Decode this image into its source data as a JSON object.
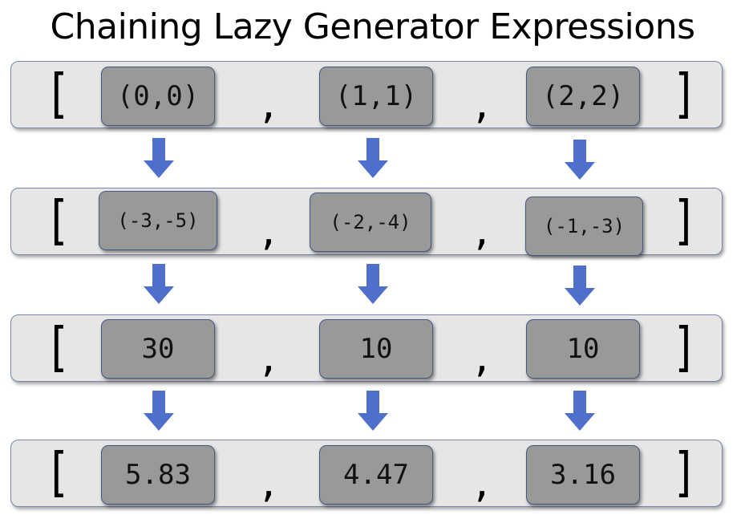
{
  "title": "Chaining Lazy Generator Expressions",
  "brackets": {
    "open": "[",
    "close": "]"
  },
  "separator": ",",
  "rows": [
    {
      "cells": [
        "(0,0)",
        "(1,1)",
        "(2,2)"
      ]
    },
    {
      "cells": [
        "(-3,-5)",
        "(-2,-4)",
        "(-1,-3)"
      ]
    },
    {
      "cells": [
        "30",
        "10",
        "10"
      ]
    },
    {
      "cells": [
        "5.83",
        "4.47",
        "3.16"
      ]
    }
  ],
  "colors": {
    "arrow": "#4f6fcc",
    "cell": "#999999",
    "row": "#e6e6e6"
  }
}
